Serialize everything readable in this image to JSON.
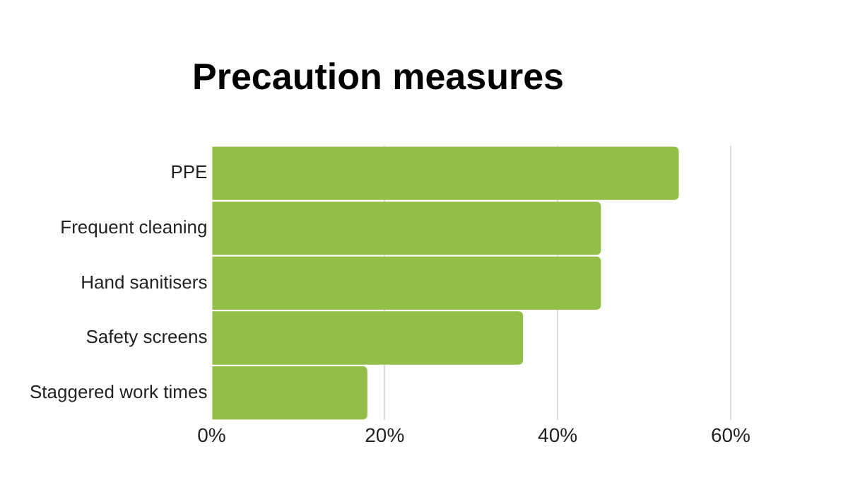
{
  "chart_data": {
    "type": "bar",
    "orientation": "horizontal",
    "title": "Precaution measures",
    "categories": [
      "PPE",
      "Frequent cleaning",
      "Hand sanitisers",
      "Safety screens",
      "Staggered work times"
    ],
    "values": [
      54,
      45,
      45,
      36,
      18
    ],
    "color": "#93bf48",
    "xlim": [
      0,
      60
    ],
    "xticks": [
      {
        "value": 0,
        "label": "0%"
      },
      {
        "value": 20,
        "label": "20%"
      },
      {
        "value": 40,
        "label": "40%"
      },
      {
        "value": 60,
        "label": "60%"
      }
    ],
    "grid": "x",
    "legend": false
  }
}
